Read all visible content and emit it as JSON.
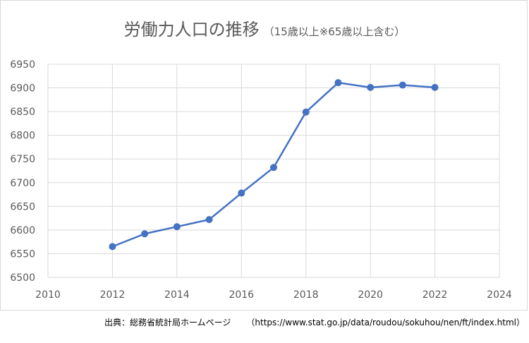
{
  "chart_data": {
    "type": "line",
    "title": "労働力人口の推移",
    "subtitle": "（15歳以上※65歳以上含む）",
    "xlabel": "",
    "ylabel": "",
    "x": [
      2012,
      2013,
      2014,
      2015,
      2016,
      2017,
      2018,
      2019,
      2020,
      2021,
      2022
    ],
    "series": [
      {
        "values": [
          6565,
          6592,
          6607,
          6622,
          6678,
          6732,
          6849,
          6911,
          6901,
          6906,
          6901
        ]
      }
    ],
    "xlim": [
      2010,
      2024
    ],
    "ylim": [
      6500,
      6950
    ],
    "xticks": [
      "2010",
      "2012",
      "2014",
      "2016",
      "2018",
      "2020",
      "2022",
      "2024"
    ],
    "yticks": [
      "6500",
      "6550",
      "6600",
      "6650",
      "6700",
      "6750",
      "6800",
      "6850",
      "6900",
      "6950"
    ],
    "grid": true,
    "line_color": "#4472c4"
  },
  "source": {
    "label": "出典：総務省統計局ホームページ",
    "url": "（https://www.stat.go.jp/data/roudou/sokuhou/nen/ft/index.html）"
  }
}
